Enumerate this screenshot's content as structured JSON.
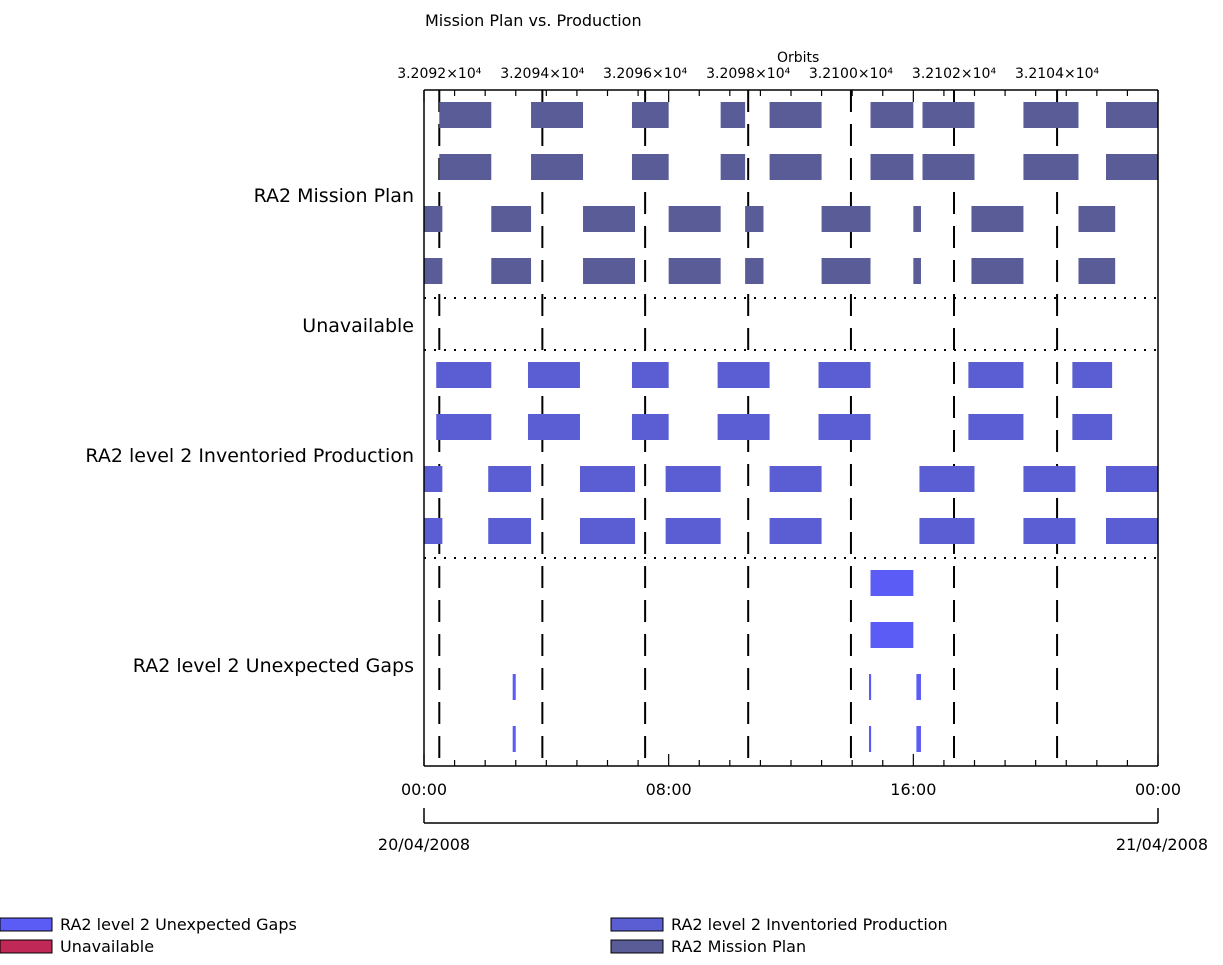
{
  "chart_data": {
    "type": "gantt",
    "title": "Mission Plan vs. Production",
    "top_axis": {
      "label": "Orbits",
      "tick_labels": [
        "3.2092×10⁴",
        "3.2094×10⁴",
        "3.2096×10⁴",
        "3.2098×10⁴",
        "3.2100×10⁴",
        "3.2102×10⁴",
        "3.2104×10⁴"
      ],
      "orbit_boundaries_hours": [
        0.5,
        3.87,
        7.23,
        10.6,
        13.96,
        17.33,
        20.7
      ]
    },
    "x_axis": {
      "range_hours": [
        0,
        24
      ],
      "major_ticks": [
        0,
        8,
        16,
        24
      ],
      "tick_labels": [
        "00:00",
        "08:00",
        "16:00",
        "00:00"
      ],
      "date_labels": [
        "20/04/2008",
        "21/04/2008"
      ]
    },
    "rows": [
      {
        "label": "RA2 Mission Plan",
        "color": "#5a5c98",
        "lanes": [
          [
            [
              0.5,
              2.2
            ],
            [
              3.5,
              5.2
            ],
            [
              6.8,
              8.0
            ],
            [
              9.7,
              10.5
            ],
            [
              11.3,
              13.0
            ],
            [
              14.6,
              16.0
            ],
            [
              16.3,
              18.0
            ],
            [
              19.6,
              21.4
            ],
            [
              22.3,
              24.0
            ]
          ],
          [
            [
              0.5,
              2.2
            ],
            [
              3.5,
              5.2
            ],
            [
              6.8,
              8.0
            ],
            [
              9.7,
              10.5
            ],
            [
              11.3,
              13.0
            ],
            [
              14.6,
              16.0
            ],
            [
              16.3,
              18.0
            ],
            [
              19.6,
              21.4
            ],
            [
              22.3,
              24.0
            ]
          ],
          [
            [
              0.0,
              0.6
            ],
            [
              2.2,
              3.5
            ],
            [
              5.2,
              6.9
            ],
            [
              8.0,
              9.7
            ],
            [
              10.5,
              11.1
            ],
            [
              13.0,
              14.6
            ],
            [
              16.0,
              16.25
            ],
            [
              17.9,
              19.6
            ],
            [
              21.4,
              22.6
            ]
          ],
          [
            [
              0.0,
              0.6
            ],
            [
              2.2,
              3.5
            ],
            [
              5.2,
              6.9
            ],
            [
              8.0,
              9.7
            ],
            [
              10.5,
              11.1
            ],
            [
              13.0,
              14.6
            ],
            [
              16.0,
              16.25
            ],
            [
              17.9,
              19.6
            ],
            [
              21.4,
              22.6
            ]
          ]
        ]
      },
      {
        "label": "Unavailable",
        "color": "#c02858",
        "lanes": [
          []
        ]
      },
      {
        "label": "RA2 level 2 Inventoried Production",
        "color": "#5a5ed2",
        "lanes": [
          [
            [
              0.4,
              2.2
            ],
            [
              3.4,
              5.1
            ],
            [
              6.8,
              8.0
            ],
            [
              9.6,
              11.3
            ],
            [
              12.9,
              14.6
            ],
            [
              17.8,
              19.6
            ],
            [
              21.2,
              22.5
            ]
          ],
          [
            [
              0.4,
              2.2
            ],
            [
              3.4,
              5.1
            ],
            [
              6.8,
              8.0
            ],
            [
              9.6,
              11.3
            ],
            [
              12.9,
              14.6
            ],
            [
              17.8,
              19.6
            ],
            [
              21.2,
              22.5
            ]
          ],
          [
            [
              0.0,
              0.6
            ],
            [
              2.1,
              3.5
            ],
            [
              5.1,
              6.9
            ],
            [
              7.9,
              9.7
            ],
            [
              11.3,
              13.0
            ],
            [
              16.2,
              18.0
            ],
            [
              19.6,
              21.3
            ],
            [
              22.3,
              24.0
            ]
          ],
          [
            [
              0.0,
              0.6
            ],
            [
              2.1,
              3.5
            ],
            [
              5.1,
              6.9
            ],
            [
              7.9,
              9.7
            ],
            [
              11.3,
              13.0
            ],
            [
              16.2,
              18.0
            ],
            [
              19.6,
              21.3
            ],
            [
              22.3,
              24.0
            ]
          ]
        ]
      },
      {
        "label": "RA2 level 2 Unexpected Gaps",
        "color": "#5b5cf6",
        "lanes": [
          [
            [
              14.6,
              16.0
            ]
          ],
          [
            [
              14.6,
              16.0
            ]
          ],
          [
            [
              2.9,
              3.0
            ],
            [
              14.55,
              14.62
            ],
            [
              16.1,
              16.25
            ]
          ],
          [
            [
              2.9,
              3.0
            ],
            [
              14.55,
              14.62
            ],
            [
              16.1,
              16.25
            ]
          ]
        ]
      }
    ],
    "legend": {
      "placement": "bottom",
      "items": [
        {
          "label": "RA2 level 2 Unexpected Gaps",
          "color": "#5b5cf6"
        },
        {
          "label": "Unavailable",
          "color": "#c02858"
        },
        {
          "label": "RA2 level 2 Inventoried Production",
          "color": "#5a5ed2"
        },
        {
          "label": "RA2 Mission Plan",
          "color": "#5a5c98"
        }
      ]
    }
  }
}
